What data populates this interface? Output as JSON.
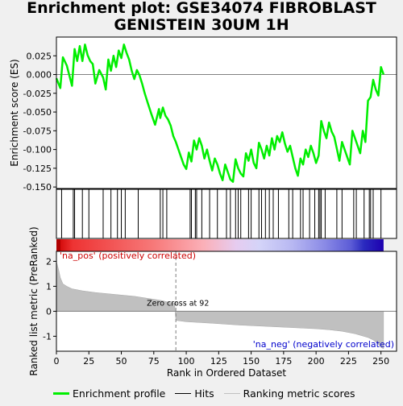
{
  "title_line1": "Enrichment plot: GSE34074 FIBROBLAST",
  "title_line2": "GENISTEIN 30UM 1H",
  "legend": {
    "profile": "Enrichment profile",
    "hits": "Hits",
    "ranking": "Ranking metric scores"
  },
  "colors": {
    "profile": "#00ee00",
    "hits": "#000000",
    "ranking": "#c0c0c0",
    "frame": "#000000"
  },
  "chart_data": [
    {
      "type": "line",
      "name": "enrichment-profile",
      "ylabel": "Enrichment score (ES)",
      "xlim": [
        0,
        262
      ],
      "ylim": [
        -0.152,
        0.05
      ],
      "yticks": [
        0.025,
        0.0,
        -0.025,
        -0.05,
        -0.075,
        -0.1,
        -0.125,
        -0.15
      ],
      "ytick_labels": [
        "0.025",
        "0.000",
        "-0.025",
        "-0.050",
        "-0.075",
        "-0.100",
        "-0.125",
        "-0.150"
      ],
      "x": [
        0,
        3,
        5,
        8,
        12,
        14,
        16,
        18,
        20,
        22,
        24,
        26,
        28,
        30,
        33,
        36,
        38,
        40,
        42,
        44,
        46,
        48,
        50,
        52,
        54,
        56,
        58,
        60,
        62,
        64,
        66,
        68,
        70,
        73,
        76,
        79,
        80,
        82,
        84,
        86,
        88,
        90,
        92,
        94,
        96,
        98,
        100,
        102,
        104,
        106,
        108,
        110,
        112,
        114,
        116,
        118,
        120,
        122,
        124,
        126,
        128,
        130,
        132,
        134,
        136,
        138,
        140,
        142,
        144,
        146,
        148,
        150,
        152,
        154,
        156,
        158,
        160,
        162,
        164,
        166,
        168,
        170,
        172,
        174,
        176,
        178,
        180,
        182,
        184,
        186,
        188,
        190,
        192,
        194,
        196,
        198,
        200,
        202,
        204,
        206,
        208,
        210,
        212,
        214,
        216,
        218,
        220,
        222,
        224,
        226,
        228,
        230,
        232,
        234,
        236,
        238,
        240,
        242,
        244,
        246,
        248,
        250,
        252
      ],
      "y": [
        -0.005,
        -0.018,
        0.023,
        0.012,
        -0.015,
        0.034,
        0.018,
        0.038,
        0.018,
        0.04,
        0.026,
        0.018,
        0.014,
        -0.012,
        0.006,
        -0.004,
        -0.02,
        0.02,
        0.005,
        0.025,
        0.01,
        0.032,
        0.022,
        0.04,
        0.029,
        0.02,
        0.005,
        -0.006,
        0.006,
        -0.001,
        -0.012,
        -0.025,
        -0.036,
        -0.052,
        -0.067,
        -0.046,
        -0.058,
        -0.044,
        -0.055,
        -0.06,
        -0.068,
        -0.082,
        -0.09,
        -0.1,
        -0.11,
        -0.12,
        -0.126,
        -0.104,
        -0.116,
        -0.088,
        -0.1,
        -0.085,
        -0.095,
        -0.112,
        -0.1,
        -0.115,
        -0.128,
        -0.112,
        -0.12,
        -0.132,
        -0.141,
        -0.12,
        -0.13,
        -0.14,
        -0.143,
        -0.113,
        -0.125,
        -0.132,
        -0.136,
        -0.105,
        -0.115,
        -0.1,
        -0.118,
        -0.125,
        -0.091,
        -0.1,
        -0.112,
        -0.095,
        -0.108,
        -0.085,
        -0.1,
        -0.082,
        -0.09,
        -0.077,
        -0.092,
        -0.103,
        -0.095,
        -0.11,
        -0.125,
        -0.135,
        -0.112,
        -0.12,
        -0.1,
        -0.11,
        -0.095,
        -0.105,
        -0.118,
        -0.108,
        -0.062,
        -0.075,
        -0.085,
        -0.064,
        -0.076,
        -0.083,
        -0.099,
        -0.115,
        -0.09,
        -0.1,
        -0.11,
        -0.12,
        -0.075,
        -0.085,
        -0.095,
        -0.105,
        -0.075,
        -0.09,
        -0.035,
        -0.03,
        -0.007,
        -0.02,
        -0.028,
        0.01,
        0.0
      ]
    },
    {
      "type": "scatter",
      "name": "hits",
      "xlim": [
        0,
        262
      ],
      "x": [
        4,
        13,
        14,
        20,
        25,
        36,
        42,
        47,
        50,
        53,
        63,
        80,
        82,
        85,
        103,
        104,
        107,
        108,
        112,
        118,
        124,
        131,
        134,
        138,
        140,
        142,
        148,
        150,
        156,
        158,
        161,
        164,
        167,
        171,
        179,
        182,
        188,
        190,
        195,
        199,
        202,
        203,
        204,
        207,
        216,
        220,
        229,
        231,
        237,
        241,
        242,
        244,
        250
      ]
    },
    {
      "type": "heatmap",
      "name": "rank-colorbar",
      "xlim": [
        0,
        252
      ],
      "gradient_stops": [
        "#cc0000",
        "#ee3333",
        "#f77a7a",
        "#fbb0b8",
        "#e6ccf0",
        "#d4d4f8",
        "#b8b8f2",
        "#8a8ae6",
        "#5c5cd6",
        "#2a2abf",
        "#1e00b0"
      ],
      "gradient_positions": [
        0,
        0.05,
        0.3,
        0.45,
        0.55,
        0.62,
        0.72,
        0.82,
        0.9,
        0.94,
        1
      ]
    },
    {
      "type": "area",
      "name": "ranking-metric",
      "ylabel": "Ranked list metric (PreRanked)",
      "xlabel": "Rank in Ordered Dataset",
      "xlim": [
        0,
        262
      ],
      "ylim": [
        -1.6,
        2.4
      ],
      "yticks": [
        2,
        1,
        0,
        -1
      ],
      "ytick_labels": [
        "2",
        "1",
        "0",
        "-1"
      ],
      "xticks": [
        0,
        25,
        50,
        75,
        100,
        125,
        150,
        175,
        200,
        225,
        250
      ],
      "xtick_labels": [
        "0",
        "25",
        "50",
        "75",
        "100",
        "125",
        "150",
        "175",
        "200",
        "225",
        "250"
      ],
      "x": [
        0,
        1,
        2,
        3,
        5,
        8,
        12,
        20,
        30,
        40,
        50,
        60,
        70,
        80,
        85,
        89,
        91,
        92,
        93,
        100,
        120,
        140,
        160,
        180,
        200,
        210,
        220,
        230,
        240,
        244,
        248,
        250,
        252
      ],
      "y": [
        2.0,
        1.8,
        1.6,
        1.35,
        1.1,
        1.0,
        0.9,
        0.82,
        0.75,
        0.7,
        0.65,
        0.6,
        0.52,
        0.44,
        0.38,
        0.33,
        0.31,
        -0.35,
        -0.37,
        -0.42,
        -0.48,
        -0.55,
        -0.6,
        -0.65,
        -0.7,
        -0.74,
        -0.8,
        -0.9,
        -1.05,
        -1.15,
        -1.32,
        -1.45,
        -1.5
      ],
      "zero_cross_rank": 92,
      "annotations": {
        "zero_cross": "Zero cross at 92",
        "na_pos": "'na_pos' (positively correlated)",
        "na_neg": "'na_neg' (negatively correlated)"
      }
    }
  ]
}
